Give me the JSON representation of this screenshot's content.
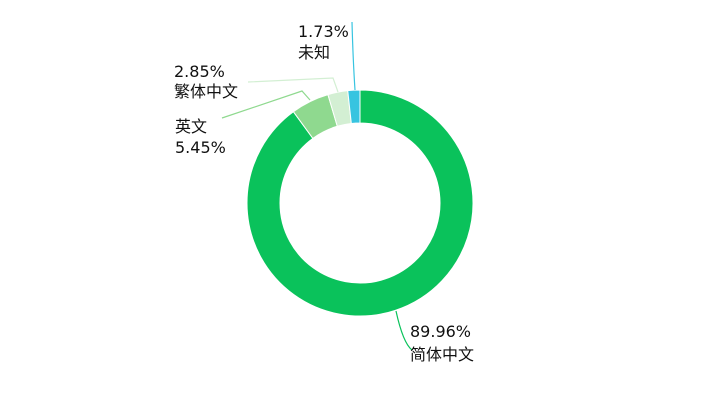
{
  "chart_data": {
    "type": "pie",
    "donut": true,
    "slices": [
      {
        "name": "简体中文",
        "value": 89.96,
        "label": "89.96%",
        "color": "#0ac25b"
      },
      {
        "name": "英文",
        "value": 5.45,
        "label": "5.45%",
        "color": "#8fd98f"
      },
      {
        "name": "繁体中文",
        "value": 2.85,
        "label": "2.85%",
        "color": "#d3efd3"
      },
      {
        "name": "未知",
        "value": 1.73,
        "label": "1.73%",
        "color": "#37c4e0"
      }
    ]
  }
}
